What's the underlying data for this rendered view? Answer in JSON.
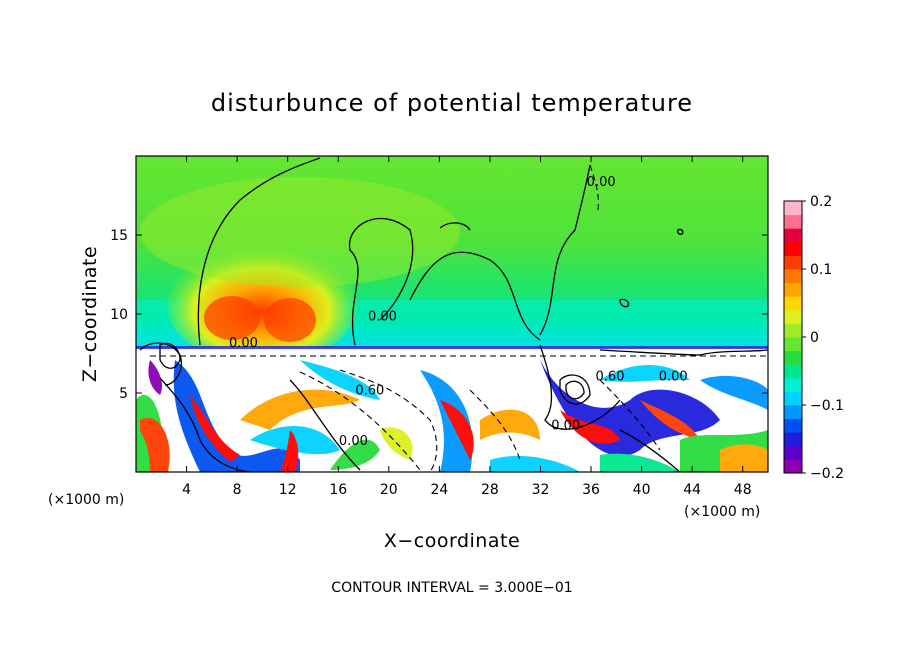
{
  "chart_data": {
    "type": "heatmap",
    "title": "disturbunce of potential temperature",
    "xlabel": "X−coordinate",
    "ylabel": "Z−coordinate",
    "x_unit_left": "(×1000 m)",
    "x_unit_right": "(×1000 m)",
    "xlim": [
      0,
      50
    ],
    "ylim": [
      0,
      20
    ],
    "x_ticks": [
      {
        "value": 4,
        "label": "4"
      },
      {
        "value": 8,
        "label": "8"
      },
      {
        "value": 12,
        "label": "12"
      },
      {
        "value": 16,
        "label": "16"
      },
      {
        "value": 20,
        "label": "20"
      },
      {
        "value": 24,
        "label": "24"
      },
      {
        "value": 28,
        "label": "28"
      },
      {
        "value": 32,
        "label": "32"
      },
      {
        "value": 36,
        "label": "36"
      },
      {
        "value": 40,
        "label": "40"
      },
      {
        "value": 44,
        "label": "44"
      },
      {
        "value": 48,
        "label": "48"
      }
    ],
    "y_ticks": [
      {
        "value": 5,
        "label": "5"
      },
      {
        "value": 10,
        "label": "10"
      },
      {
        "value": 15,
        "label": "15"
      }
    ],
    "colorbar": {
      "range": [
        -0.2,
        0.2
      ],
      "ticks": [
        {
          "value": 0.2,
          "label": "0.2"
        },
        {
          "value": 0.1,
          "label": "0.1"
        },
        {
          "value": 0,
          "label": "0"
        },
        {
          "value": -0.1,
          "label": "−0.1"
        },
        {
          "value": -0.2,
          "label": "−0.2"
        }
      ],
      "colors": [
        "#8c00b4",
        "#5a00c8",
        "#1e1edc",
        "#0050f0",
        "#0096ff",
        "#00d2ff",
        "#00f0d2",
        "#00e68c",
        "#28dc3c",
        "#64e632",
        "#a0eb28",
        "#dcf01e",
        "#ffd700",
        "#ffa500",
        "#ff7800",
        "#ff3c00",
        "#ff0000",
        "#e6003c",
        "#ff6e8c",
        "#ffb4c8"
      ]
    },
    "contour_labels": [
      {
        "text": "0.00",
        "x": 8.5,
        "z": 7.9
      },
      {
        "text": "0.00",
        "x": 19.5,
        "z": 9.6
      },
      {
        "text": "0.00",
        "x": 36.8,
        "z": 18.1
      },
      {
        "text": "0.60",
        "x": 18.5,
        "z": 4.9
      },
      {
        "text": "0.00",
        "x": 34.0,
        "z": 2.7
      },
      {
        "text": "0.60",
        "x": 37.5,
        "z": 5.8
      },
      {
        "text": "0.00",
        "x": 42.5,
        "z": 5.8
      },
      {
        "text": "0.00",
        "x": 17.2,
        "z": 1.7
      }
    ],
    "footnote": "CONTOUR INTERVAL = 3.000E−01"
  }
}
